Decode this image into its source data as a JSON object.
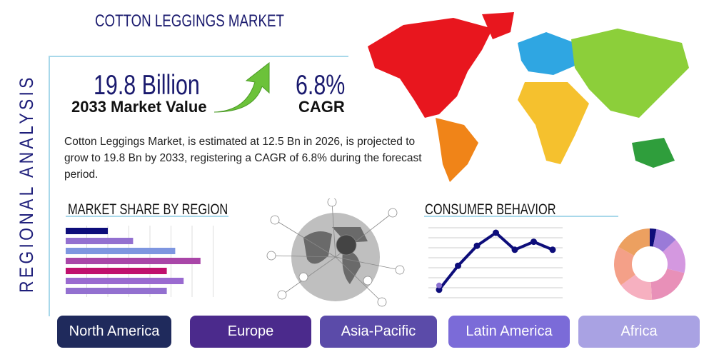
{
  "title": "COTTON LEGGINGS MARKET",
  "side_label": "REGIONAL ANALYSIS",
  "market_value": {
    "value": "19.8 Billion",
    "label": "2033 Market Value"
  },
  "cagr": {
    "value": "6.8%",
    "label": "CAGR"
  },
  "description": "Cotton Leggings Market, is estimated at 12.5 Bn in 2026, is projected to grow to 19.8 Bn by 2033, registering a CAGR of 6.8% during the forecast period.",
  "sections": {
    "market_share": "MARKET SHARE BY REGION",
    "consumer": "CONSUMER BEHAVIOR"
  },
  "regions": [
    {
      "label": "North America",
      "color": "#1f2a5c"
    },
    {
      "label": "Europe",
      "color": "#4b2a8c"
    },
    {
      "label": "Asia-Pacific",
      "color": "#5b4ba9"
    },
    {
      "label": "Latin America",
      "color": "#7b6bd8"
    },
    {
      "label": "Africa",
      "color": "#a9a2e3"
    }
  ],
  "chart_data": [
    {
      "type": "bar",
      "orientation": "horizontal",
      "values": [
        2.0,
        3.2,
        5.2,
        6.4,
        4.8,
        5.6,
        4.8
      ],
      "colors": [
        "#0d0d7a",
        "#9370d0",
        "#7e96e0",
        "#a946a8",
        "#c0106e",
        "#9a6ad0",
        "#9370d0"
      ],
      "xlim": [
        0,
        7
      ],
      "grid": true
    },
    {
      "type": "line",
      "values": [
        0.8,
        3.2,
        5.2,
        6.5,
        4.8,
        5.6,
        4.8
      ],
      "ylim": [
        0,
        7
      ],
      "grid": true,
      "color": "#0d0d7a"
    },
    {
      "type": "pie",
      "donut": true,
      "values": [
        3,
        10,
        16,
        20,
        16,
        18,
        17
      ],
      "colors": [
        "#0d0d7a",
        "#9a7ad8",
        "#d498e0",
        "#e890b8",
        "#f6b0c0",
        "#f4a088",
        "#eca060"
      ]
    }
  ]
}
